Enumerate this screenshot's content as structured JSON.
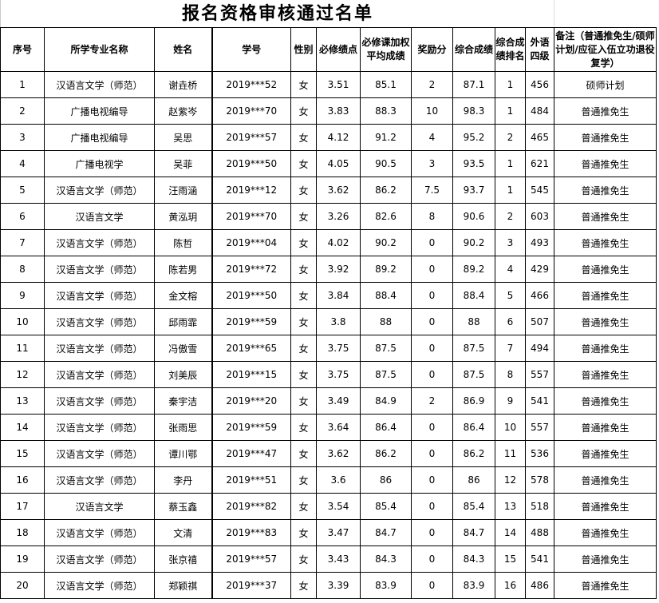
{
  "title": "报名资格审核通过名单",
  "headers": [
    "序号",
    "所学专业名称",
    "姓名",
    "学号",
    "性别",
    "必修绩点",
    "必修课加权平均成绩",
    "奖励分",
    "综合成绩",
    "综合成绩排名",
    "外语四级",
    "备注（普通推免生/硕师计划/应征入伍立功退役复学）"
  ],
  "rows": [
    [
      "1",
      "汉语言文学（师范）",
      "谢垚桥",
      "2019***52",
      "女",
      "3.51",
      "85.1",
      "2",
      "87.1",
      "1",
      "456",
      "硕师计划"
    ],
    [
      "2",
      "广播电视编导",
      "赵紫岑",
      "2019***70",
      "女",
      "3.83",
      "88.3",
      "10",
      "98.3",
      "1",
      "484",
      "普通推免生"
    ],
    [
      "3",
      "广播电视编导",
      "吴思",
      "2019***57",
      "女",
      "4.12",
      "91.2",
      "4",
      "95.2",
      "2",
      "465",
      "普通推免生"
    ],
    [
      "4",
      "广播电视学",
      "吴菲",
      "2019***50",
      "女",
      "4.05",
      "90.5",
      "3",
      "93.5",
      "1",
      "621",
      "普通推免生"
    ],
    [
      "5",
      "汉语言文学（师范）",
      "汪雨涵",
      "2019***12",
      "女",
      "3.62",
      "86.2",
      "7.5",
      "93.7",
      "1",
      "545",
      "普通推免生"
    ],
    [
      "6",
      "汉语言文学",
      "黄泓玥",
      "2019***70",
      "女",
      "3.26",
      "82.6",
      "8",
      "90.6",
      "2",
      "603",
      "普通推免生"
    ],
    [
      "7",
      "汉语言文学（师范）",
      "陈哲",
      "2019***04",
      "女",
      "4.02",
      "90.2",
      "0",
      "90.2",
      "3",
      "493",
      "普通推免生"
    ],
    [
      "8",
      "汉语言文学（师范）",
      "陈若男",
      "2019***72",
      "女",
      "3.92",
      "89.2",
      "0",
      "89.2",
      "4",
      "429",
      "普通推免生"
    ],
    [
      "9",
      "汉语言文学（师范）",
      "金文榕",
      "2019***50",
      "女",
      "3.84",
      "88.4",
      "0",
      "88.4",
      "5",
      "466",
      "普通推免生"
    ],
    [
      "10",
      "汉语言文学（师范）",
      "邱雨霏",
      "2019***59",
      "女",
      "3.8",
      "88",
      "0",
      "88",
      "6",
      "507",
      "普通推免生"
    ],
    [
      "11",
      "汉语言文学（师范）",
      "冯傲雪",
      "2019***65",
      "女",
      "3.75",
      "87.5",
      "0",
      "87.5",
      "7",
      "494",
      "普通推免生"
    ],
    [
      "12",
      "汉语言文学（师范）",
      "刘美辰",
      "2019***15",
      "女",
      "3.75",
      "87.5",
      "0",
      "87.5",
      "8",
      "557",
      "普通推免生"
    ],
    [
      "13",
      "汉语言文学（师范）",
      "秦宇洁",
      "2019***20",
      "女",
      "3.49",
      "84.9",
      "2",
      "86.9",
      "9",
      "541",
      "普通推免生"
    ],
    [
      "14",
      "汉语言文学（师范）",
      "张雨思",
      "2019***59",
      "女",
      "3.64",
      "86.4",
      "0",
      "86.4",
      "10",
      "557",
      "普通推免生"
    ],
    [
      "15",
      "汉语言文学（师范）",
      "谭川鄂",
      "2019***47",
      "女",
      "3.62",
      "86.2",
      "0",
      "86.2",
      "11",
      "536",
      "普通推免生"
    ],
    [
      "16",
      "汉语言文学（师范）",
      "李丹",
      "2019***51",
      "女",
      "3.6",
      "86",
      "0",
      "86",
      "12",
      "578",
      "普通推免生"
    ],
    [
      "17",
      "汉语言文学",
      "蔡玉鑫",
      "2019***82",
      "女",
      "3.54",
      "85.4",
      "0",
      "85.4",
      "13",
      "518",
      "普通推免生"
    ],
    [
      "18",
      "汉语言文学（师范）",
      "文清",
      "2019***83",
      "女",
      "3.47",
      "84.7",
      "0",
      "84.7",
      "14",
      "488",
      "普通推免生"
    ],
    [
      "19",
      "汉语言文学（师范）",
      "张京禧",
      "2019***57",
      "女",
      "3.43",
      "84.3",
      "0",
      "84.3",
      "15",
      "541",
      "普通推免生"
    ],
    [
      "20",
      "汉语言文学（师范）",
      "郑颖祺",
      "2019***37",
      "女",
      "3.39",
      "83.9",
      "0",
      "83.9",
      "16",
      "486",
      "普通推免生"
    ]
  ]
}
